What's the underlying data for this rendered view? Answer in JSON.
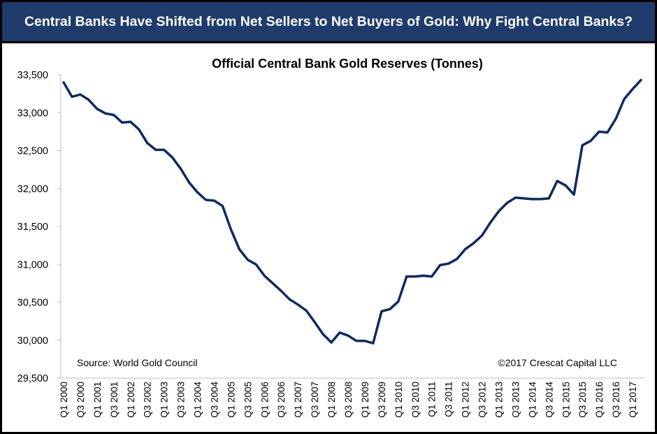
{
  "header": {
    "title": "Central Banks Have Shifted from Net Sellers to Net Buyers of Gold: Why Fight Central Banks?"
  },
  "colors": {
    "header_bg": "#1f3b6b",
    "line": "#0d2a66",
    "text": "#000000"
  },
  "chart_data": {
    "type": "line",
    "title": "Official Central Bank Gold Reserves (Tonnes)",
    "xlabel": "",
    "ylabel": "",
    "ylim": [
      29500,
      33500
    ],
    "yticks": [
      "29,500",
      "30,000",
      "30,500",
      "31,000",
      "31,500",
      "32,000",
      "32,500",
      "33,000",
      "33,500"
    ],
    "ytick_values": [
      29500,
      30000,
      30500,
      31000,
      31500,
      32000,
      32500,
      33000,
      33500
    ],
    "xtick_labels": [
      "Q1 2000",
      "Q3 2000",
      "Q1 2001",
      "Q3 2001",
      "Q1 2002",
      "Q3 2002",
      "Q1 2003",
      "Q3 2003",
      "Q1 2004",
      "Q3 2004",
      "Q1 2005",
      "Q3 2005",
      "Q1 2006",
      "Q3 2006",
      "Q1 2007",
      "Q3 2007",
      "Q1 2008",
      "Q3 2008",
      "Q1 2009",
      "Q3 2009",
      "Q1 2010",
      "Q3 2010",
      "Q1 2011",
      "Q3 2011",
      "Q1 2012",
      "Q3 2012",
      "Q1 2013",
      "Q3 2013",
      "Q1 2014",
      "Q3 2014",
      "Q1 2015",
      "Q3 2015",
      "Q1 2016",
      "Q3 2016",
      "Q1 2017"
    ],
    "grid": false,
    "legend": "none",
    "annotations": {
      "source": "Source: World Gold Council",
      "copyright": "©2017 Crescat Capital LLC"
    },
    "series": [
      {
        "values": [
          33400,
          33210,
          33240,
          33170,
          33050,
          32990,
          32970,
          32870,
          32880,
          32780,
          32600,
          32510,
          32510,
          32410,
          32260,
          32080,
          31950,
          31850,
          31840,
          31770,
          31460,
          31200,
          31060,
          31000,
          30850,
          30750,
          30650,
          30540,
          30470,
          30390,
          30240,
          30080,
          29970,
          30100,
          30060,
          29990,
          29990,
          29960,
          30380,
          30410,
          30510,
          30840,
          30840,
          30850,
          30840,
          30990,
          31010,
          31070,
          31200,
          31280,
          31380,
          31550,
          31700,
          31810,
          31880,
          31870,
          31860,
          31860,
          31870,
          32100,
          32040,
          31920,
          32570,
          32630,
          32750,
          32740,
          32920,
          33180,
          33310,
          33430
        ]
      }
    ]
  }
}
